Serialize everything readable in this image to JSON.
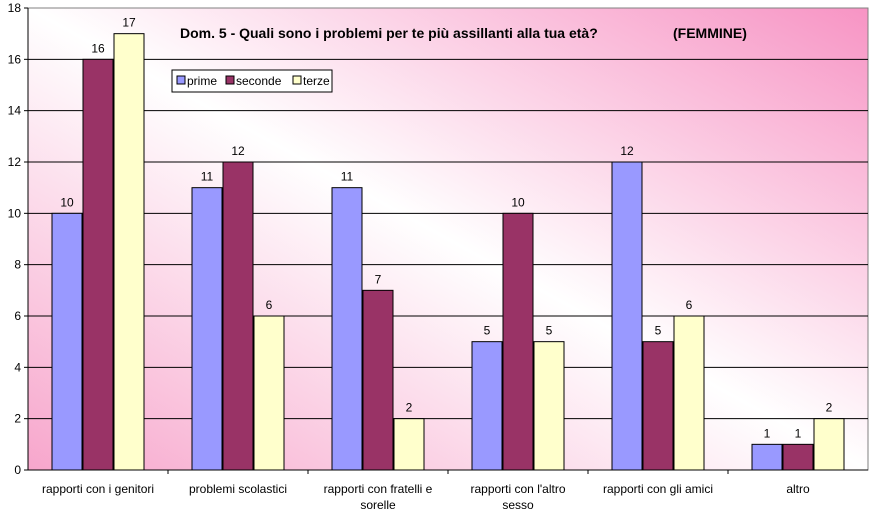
{
  "chart_data": {
    "type": "bar",
    "title": "Dom. 5 - Quali sono i problemi per te più assillanti alla tua età?",
    "subtitle": "(FEMMINE)",
    "categories": [
      [
        "rapporti con i genitori"
      ],
      [
        "problemi scolastici"
      ],
      [
        "rapporti con fratelli e",
        "sorelle"
      ],
      [
        "rapporti con l'altro",
        "sesso"
      ],
      [
        "rapporti con gli amici"
      ],
      [
        "altro"
      ]
    ],
    "series": [
      {
        "name": "prime",
        "color": "#9999ff",
        "values": [
          10,
          11,
          11,
          5,
          12,
          1
        ]
      },
      {
        "name": "seconde",
        "color": "#993366",
        "values": [
          16,
          12,
          7,
          10,
          5,
          1
        ]
      },
      {
        "name": "terze",
        "color": "#ffffcc",
        "values": [
          17,
          6,
          2,
          5,
          6,
          2
        ]
      }
    ],
    "ylim": [
      0,
      18
    ],
    "yticks": [
      0,
      2,
      4,
      6,
      8,
      10,
      12,
      14,
      16,
      18
    ],
    "grid": true,
    "legend_position": "top-left",
    "background_gradient": [
      "#ffffff",
      "#ff99cc"
    ]
  }
}
